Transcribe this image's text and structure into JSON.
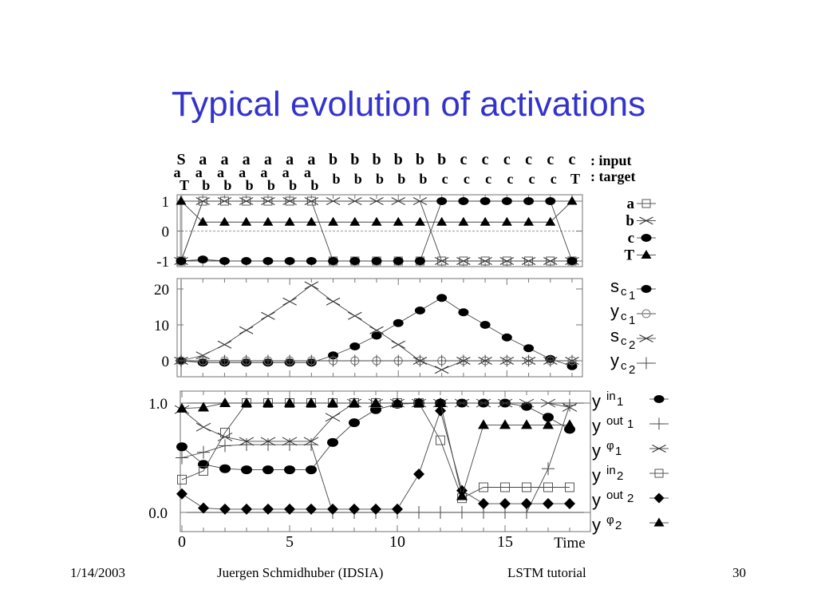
{
  "slide": {
    "title": "Typical evolution of activations",
    "footer": {
      "date": "1/14/2003",
      "author": "Juergen Schmidhuber (IDSIA)",
      "topic": "LSTM tutorial",
      "page": "30"
    }
  },
  "chart_data": [
    {
      "type": "line",
      "title": "",
      "sequence": {
        "input_label": ": input",
        "target_label": ": target",
        "input": [
          "S",
          "a",
          "a",
          "a",
          "a",
          "a",
          "a",
          "b",
          "b",
          "b",
          "b",
          "b",
          "b",
          "c",
          "c",
          "c",
          "c",
          "c",
          "c"
        ],
        "target": [
          [
            "a",
            "T"
          ],
          [
            "a",
            "b"
          ],
          [
            "a",
            "b"
          ],
          [
            "a",
            "b"
          ],
          [
            "a",
            "b"
          ],
          [
            "a",
            "b"
          ],
          [
            "a",
            "b"
          ],
          [
            "b"
          ],
          [
            "b"
          ],
          [
            "b"
          ],
          [
            "b"
          ],
          [
            "b"
          ],
          [
            "c"
          ],
          [
            "c"
          ],
          [
            "c"
          ],
          [
            "c"
          ],
          [
            "c"
          ],
          [
            "c"
          ],
          [
            "T"
          ]
        ]
      },
      "x": [
        0,
        1,
        2,
        3,
        4,
        5,
        6,
        7,
        8,
        9,
        10,
        11,
        12,
        13,
        14,
        15,
        16,
        17,
        18
      ],
      "ylim": [
        -1.2,
        1.2
      ],
      "yticks": [
        "1",
        "0",
        "-1"
      ],
      "ytick_values": [
        1,
        0,
        -1
      ],
      "series": [
        {
          "name": "a",
          "marker": "square-open",
          "values": [
            -1,
            1,
            1,
            1,
            1,
            1,
            1,
            -1,
            -1,
            -1,
            -1,
            -1,
            -1,
            -1,
            -1,
            -1,
            -1,
            -1,
            -1
          ]
        },
        {
          "name": "b",
          "marker": "x",
          "values": [
            -1,
            1,
            1,
            1,
            1,
            1,
            1,
            1,
            1,
            1,
            1,
            1,
            -1,
            -1,
            -1,
            -1,
            -1,
            -1,
            -1
          ]
        },
        {
          "name": "c",
          "marker": "circle-filled",
          "values": [
            -1,
            -0.95,
            -1,
            -1,
            -1,
            -1,
            -1,
            -1,
            -1,
            -1,
            -1,
            -1,
            1,
            1,
            1,
            1,
            1,
            1,
            -1
          ]
        },
        {
          "name": "T",
          "marker": "triangle-filled",
          "values": [
            1,
            0.3,
            0.3,
            0.3,
            0.3,
            0.3,
            0.3,
            0.3,
            0.3,
            0.3,
            0.3,
            0.3,
            0.3,
            0.3,
            0.3,
            0.3,
            0.3,
            0.3,
            1
          ]
        }
      ]
    },
    {
      "type": "line",
      "title": "",
      "x": [
        0,
        1,
        2,
        3,
        4,
        5,
        6,
        7,
        8,
        9,
        10,
        11,
        12,
        13,
        14,
        15,
        16,
        17,
        18
      ],
      "ylim": [
        -3,
        23
      ],
      "yticks": [
        "20",
        "10",
        "0"
      ],
      "ytick_values": [
        20,
        10,
        0
      ],
      "series": [
        {
          "name": "s_c1",
          "label_main": "s",
          "label_sub": "c",
          "label_idx": "1",
          "marker": "circle-filled",
          "values": [
            0,
            -0.5,
            -0.5,
            -0.5,
            -0.5,
            -0.5,
            -0.5,
            1.5,
            4,
            7,
            10.5,
            14,
            17.5,
            13.5,
            10,
            6.5,
            3.5,
            0.5,
            -1.5
          ]
        },
        {
          "name": "y_c1",
          "label_main": "y",
          "label_sub": "c",
          "label_idx": "1",
          "marker": "circle-open",
          "values": [
            0,
            0,
            0,
            0,
            0,
            0,
            0,
            0,
            0,
            0,
            0,
            0,
            0,
            0,
            0,
            0,
            0,
            0,
            0
          ]
        },
        {
          "name": "s_c2",
          "label_main": "s",
          "label_sub": "c",
          "label_idx": "2",
          "marker": "x",
          "values": [
            0,
            1.5,
            4.5,
            8.5,
            12.5,
            16.5,
            21,
            16.5,
            12.5,
            8.5,
            4.5,
            0,
            -2.5,
            0,
            0,
            0,
            0,
            0,
            0
          ]
        },
        {
          "name": "y_c2",
          "label_main": "y",
          "label_sub": "c",
          "label_idx": "2",
          "marker": "plus",
          "values": [
            0,
            0,
            0,
            0,
            0,
            0,
            0,
            0,
            0,
            0,
            0,
            0,
            0,
            0,
            0,
            0,
            0,
            0,
            0
          ]
        }
      ]
    },
    {
      "type": "line",
      "title": "",
      "xlabel": "Time",
      "x": [
        0,
        1,
        2,
        3,
        4,
        5,
        6,
        7,
        8,
        9,
        10,
        11,
        12,
        13,
        14,
        15,
        16,
        17,
        18
      ],
      "xlim": [
        0,
        18
      ],
      "xticks": [
        "0",
        "5",
        "10",
        "15"
      ],
      "xtick_values": [
        0,
        5,
        10,
        15
      ],
      "ylim": [
        -0.1,
        1.1
      ],
      "yticks": [
        "1.0",
        "0.0"
      ],
      "ytick_values": [
        1.0,
        0.0
      ],
      "series": [
        {
          "name": "y^in1",
          "label_main": "y",
          "label_sup": "in",
          "label_idx": "1",
          "marker": "circle-filled",
          "values": [
            0.6,
            0.44,
            0.4,
            0.39,
            0.39,
            0.39,
            0.39,
            0.64,
            0.82,
            0.94,
            0.99,
            1.0,
            1.0,
            1.0,
            1.0,
            1.0,
            0.97,
            0.87,
            0.76
          ]
        },
        {
          "name": "y^out1",
          "label_main": "y",
          "label_sup": "out",
          "label_idx": "1",
          "marker": "plus",
          "values": [
            0.5,
            0.55,
            0.61,
            0.62,
            0.62,
            0.62,
            0.62,
            0.0,
            0.0,
            0.0,
            0.0,
            0.0,
            0.0,
            0.0,
            0.0,
            0.0,
            0.0,
            0.4,
            0.98
          ]
        },
        {
          "name": "y^phi1",
          "label_main": "y",
          "label_sup": "φ",
          "label_idx": "1",
          "marker": "x",
          "values": [
            0.94,
            0.78,
            0.69,
            0.65,
            0.65,
            0.65,
            0.65,
            0.87,
            1.0,
            1.0,
            1.0,
            1.0,
            1.0,
            1.0,
            1.0,
            1.0,
            1.0,
            1.0,
            0.96
          ]
        },
        {
          "name": "y^in2",
          "label_main": "y",
          "label_sup": "in",
          "label_idx": "2",
          "marker": "square-open",
          "values": [
            0.3,
            0.38,
            0.73,
            1.0,
            1.0,
            1.0,
            1.0,
            1.0,
            1.0,
            1.0,
            1.0,
            1.0,
            0.66,
            0.13,
            0.23,
            0.23,
            0.23,
            0.23,
            0.23
          ]
        },
        {
          "name": "y^out2",
          "label_main": "y",
          "label_sup": "out",
          "label_idx": "2",
          "marker": "diamond-filled",
          "values": [
            0.17,
            0.04,
            0.03,
            0.03,
            0.03,
            0.03,
            0.03,
            0.03,
            0.03,
            0.03,
            0.03,
            0.35,
            0.93,
            0.2,
            0.08,
            0.08,
            0.08,
            0.08,
            0.08
          ]
        },
        {
          "name": "y^phi2",
          "label_main": "y",
          "label_sup": "φ",
          "label_idx": "2",
          "marker": "triangle-filled",
          "values": [
            0.95,
            0.96,
            1.0,
            1.0,
            1.0,
            1.0,
            1.0,
            1.0,
            1.0,
            1.0,
            1.0,
            1.0,
            1.0,
            0.15,
            0.8,
            0.8,
            0.8,
            0.8,
            0.8
          ]
        }
      ]
    }
  ]
}
